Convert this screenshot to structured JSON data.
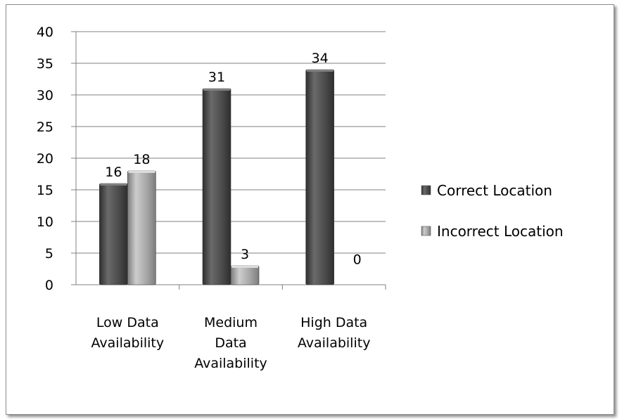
{
  "chart_data": {
    "type": "bar",
    "categories": [
      [
        "Low Data",
        "Availability"
      ],
      [
        "Medium",
        "Data",
        "Availability"
      ],
      [
        "High Data",
        "Availability"
      ]
    ],
    "series": [
      {
        "name": "Correct Location",
        "values": [
          16,
          31,
          34
        ],
        "color": "#4d4d4d"
      },
      {
        "name": "Incorrect Location",
        "values": [
          18,
          3,
          0
        ],
        "color": "#a6a6a6"
      }
    ],
    "title": "",
    "xlabel": "",
    "ylabel": "",
    "ylim": [
      0,
      40
    ],
    "yticks": [
      "0",
      "5",
      "10",
      "15",
      "20",
      "25",
      "30",
      "35",
      "40"
    ],
    "data_labels": [
      [
        "16",
        "31",
        "34"
      ],
      [
        "18",
        "3",
        "0"
      ]
    ],
    "grid": true,
    "legend": "right"
  }
}
